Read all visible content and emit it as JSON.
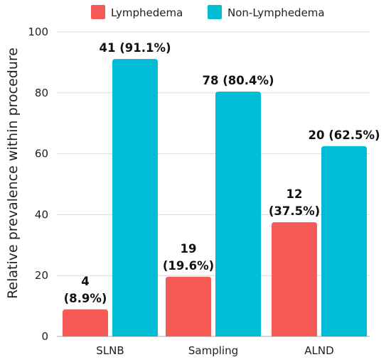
{
  "chart_data": {
    "type": "bar",
    "title": "",
    "xlabel": "",
    "ylabel": "Relative prevalence within procedure",
    "ylim": [
      0,
      100
    ],
    "yticks": [
      0,
      20,
      40,
      60,
      80,
      100
    ],
    "grid": true,
    "legend_position": "top",
    "categories": [
      "SLNB",
      "Sampling",
      "ALND"
    ],
    "series": [
      {
        "name": "Lymphedema",
        "color": "#f55a57",
        "values": [
          8.9,
          19.6,
          37.5
        ],
        "labels": [
          [
            "4",
            "(8.9%)"
          ],
          [
            "19",
            "(19.6%)"
          ],
          [
            "12",
            "(37.5%)"
          ]
        ]
      },
      {
        "name": "Non-Lymphedema",
        "color": "#00bcd4",
        "values": [
          91.1,
          80.4,
          62.5
        ],
        "labels": [
          [
            "41 (91.1%)"
          ],
          [
            "78 (80.4%)"
          ],
          [
            "20 (62.5%)"
          ]
        ]
      }
    ]
  }
}
